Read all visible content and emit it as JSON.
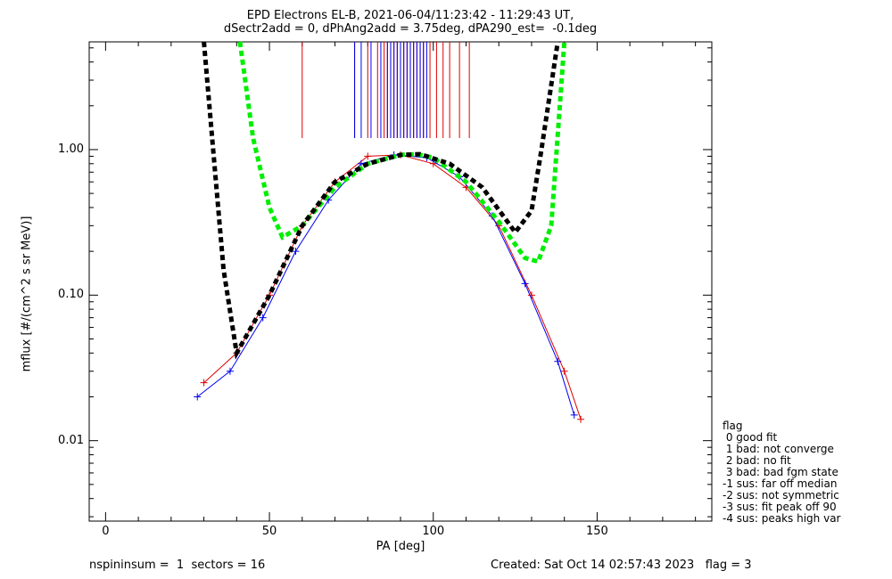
{
  "title": {
    "line1": "EPD Electrons EL-B, 2021-06-04/11:23:42 - 11:29:43 UT,",
    "line2": "dSectr2add = 0, dPhAng2add = 3.75deg, dPA290_est=  -0.1deg"
  },
  "footer": {
    "left": "nspininsum =  1  sectors = 16",
    "right": "Created: Sat Oct 14 02:57:43 2023   flag = 3"
  },
  "legend": {
    "title": "flag",
    "entries": [
      " 0 good fit",
      " 1 bad: not converge",
      " 2 bad: no fit",
      " 3 bad: bad fgm state",
      "-1 sus: far off median",
      "-2 sus: not symmetric",
      "-3 sus: fit peak off 90",
      "-4 sus: peaks high var"
    ]
  },
  "chart_data": {
    "type": "line",
    "title": "EPD Electrons EL-B, 2021-06-04/11:23:42 - 11:29:43 UT,",
    "xlabel": "PA [deg]",
    "ylabel": "mflux [#/(cm^2 s sr MeV)]",
    "xlim": [
      -5,
      185
    ],
    "ylim": [
      0.0028,
      5.5
    ],
    "yscale": "log",
    "xticks": [
      0,
      50,
      100,
      150
    ],
    "xtick_labels": [
      "0",
      "50",
      "100",
      "150"
    ],
    "yticks": [
      0.01,
      0.1,
      1.0
    ],
    "ytick_labels": [
      "0.01",
      "0.10",
      "1.00"
    ],
    "colors": {
      "red": "#dd0000",
      "blue": "#0000ee",
      "green": "#00ee00",
      "black": "#000000"
    },
    "series": [
      {
        "color": "red",
        "style": "line+plus",
        "x": [
          30,
          40,
          50,
          60,
          70,
          80,
          90,
          100,
          110,
          120,
          130,
          140,
          145
        ],
        "y": [
          0.025,
          0.04,
          0.1,
          0.3,
          0.6,
          0.9,
          0.92,
          0.8,
          0.55,
          0.3,
          0.1,
          0.03,
          0.014
        ]
      },
      {
        "color": "blue",
        "style": "line+plus",
        "x": [
          28,
          38,
          48,
          58,
          68,
          78,
          88,
          98,
          108,
          118,
          128,
          138,
          143
        ],
        "y": [
          0.02,
          0.03,
          0.07,
          0.2,
          0.45,
          0.8,
          0.92,
          0.88,
          0.65,
          0.35,
          0.12,
          0.035,
          0.015
        ]
      },
      {
        "color": "green",
        "style": "dashed",
        "x": [
          41,
          45,
          50,
          54,
          60,
          70,
          80,
          90,
          95,
          100,
          110,
          120,
          128,
          132,
          136,
          140
        ],
        "y": [
          5.5,
          1.2,
          0.4,
          0.25,
          0.3,
          0.55,
          0.8,
          0.92,
          0.93,
          0.88,
          0.6,
          0.32,
          0.18,
          0.17,
          0.3,
          5.5
        ]
      },
      {
        "color": "black",
        "style": "dashed",
        "x": [
          30,
          33,
          36,
          40,
          50,
          60,
          70,
          80,
          90,
          96,
          105,
          115,
          125,
          130,
          133,
          138
        ],
        "y": [
          5.5,
          0.9,
          0.15,
          0.04,
          0.1,
          0.3,
          0.6,
          0.8,
          0.92,
          0.93,
          0.8,
          0.55,
          0.27,
          0.38,
          1.0,
          5.5
        ]
      }
    ],
    "peak_markers": {
      "red_x": [
        60,
        76,
        80,
        83,
        85,
        86,
        87,
        88,
        89,
        90,
        91,
        92,
        93,
        94,
        95,
        96,
        97,
        99,
        101,
        103,
        105,
        108,
        111
      ],
      "blue_x": [
        76,
        78,
        81,
        84,
        86,
        87,
        88,
        89,
        90,
        91,
        92,
        93,
        94,
        95,
        96,
        97,
        98
      ]
    }
  }
}
